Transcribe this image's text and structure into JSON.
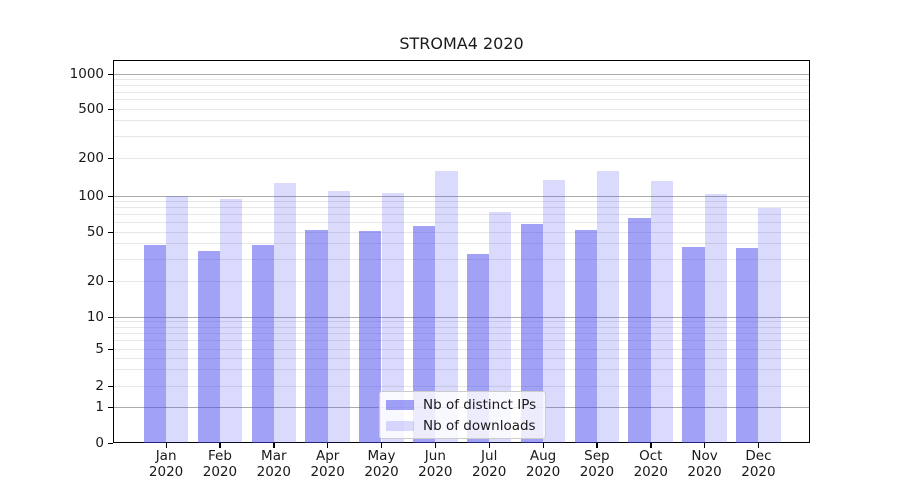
{
  "chart_data": {
    "type": "bar",
    "title": "STROMA4 2020",
    "categories": [
      "Jan",
      "Feb",
      "Mar",
      "Apr",
      "May",
      "Jun",
      "Jul",
      "Aug",
      "Sep",
      "Oct",
      "Nov",
      "Dec"
    ],
    "category_year": "2020",
    "series": [
      {
        "name": "Nb of distinct IPs",
        "color": "rgba(68,68,238,0.5)",
        "values": [
          39,
          35,
          39,
          52,
          51,
          56,
          33,
          58,
          52,
          66,
          38,
          37
        ]
      },
      {
        "name": "Nb of downloads",
        "color": "rgba(68,68,238,0.2)",
        "values": [
          100,
          95,
          127,
          110,
          106,
          158,
          74,
          133,
          158,
          132,
          103,
          80
        ]
      }
    ],
    "yscale": "symlog",
    "ylim": [
      0,
      1000
    ],
    "yticks": [
      0,
      1,
      2,
      5,
      10,
      20,
      50,
      100,
      200,
      500,
      1000
    ],
    "grid": "both",
    "legend_position": "lower center"
  },
  "colors": {
    "major_grid": "#ababab",
    "minor_grid": "#e7e7e7",
    "spine": "#000000",
    "text": "#1a1a1a",
    "legend_border": "#cccccc"
  }
}
